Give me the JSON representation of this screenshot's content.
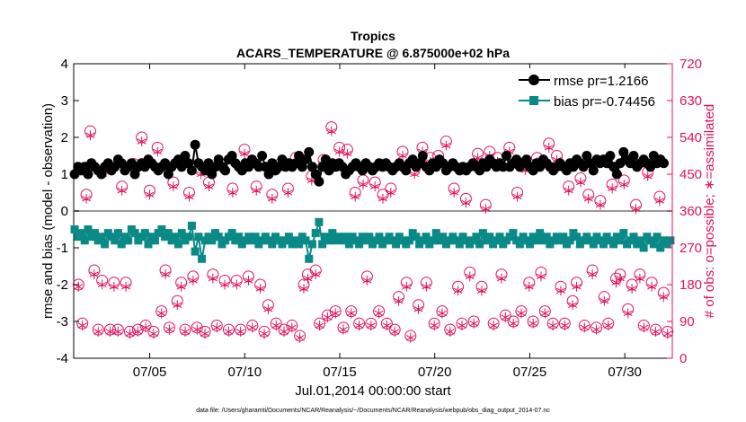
{
  "chart_data": {
    "type": "line",
    "title": "Tropics",
    "subtitle": "ACARS_TEMPERATURE @ 6.875000e+02 hPa",
    "xlabel": "Jul.01,2014 00:00:00 start",
    "ylabel_left": "rmse and bias (model - observation)",
    "ylabel_right": "# of obs: o=possible; ∗=assimilated",
    "footnote": "data file: /Users/gharamti/Documents/NCAR/Reanalysis/~/Documents/NCAR/Reanalysis/webpub/obs_diag_output_2014-07.nc",
    "xlim": [
      1,
      32.5
    ],
    "x_ticks": [
      5,
      10,
      15,
      20,
      25,
      30
    ],
    "x_tick_labels": [
      "07/05",
      "07/10",
      "07/15",
      "07/20",
      "07/25",
      "07/30"
    ],
    "ylim_left": [
      -4,
      4
    ],
    "y_ticks_left": [
      "-4",
      "-3",
      "-2",
      "-1",
      "0",
      "1",
      "2",
      "3",
      "4"
    ],
    "ylim_right": [
      0,
      720
    ],
    "y_ticks_right": [
      "0",
      "90",
      "180",
      "270",
      "360",
      "450",
      "540",
      "630",
      "720"
    ],
    "legend_position": "top-right",
    "colors": {
      "rmse": "#000000",
      "bias": "#0a8a87",
      "obs": "#e0125f",
      "zero": "#9a9a9a"
    },
    "series": [
      {
        "name": "rmse pr=1.2166",
        "axis": "left",
        "marker": "circle",
        "values": [
          1.0,
          1.2,
          1.1,
          1.2,
          1.0,
          1.3,
          1.2,
          1.1,
          1.0,
          1.2,
          1.3,
          1.1,
          1.2,
          1.4,
          1.3,
          1.1,
          1.2,
          1.3,
          1.0,
          1.2,
          1.3,
          1.2,
          1.4,
          1.3,
          1.2,
          1.1,
          1.2,
          1.3,
          1.0,
          1.2,
          1.3,
          1.4,
          1.2,
          1.5,
          1.3,
          1.1,
          1.8,
          1.3,
          1.2,
          1.1,
          1.3,
          1.0,
          1.2,
          1.4,
          1.2,
          1.1,
          1.4,
          1.5,
          1.3,
          1.2,
          1.1,
          1.3,
          1.2,
          1.4,
          1.3,
          1.2,
          1.5,
          1.2,
          1.0,
          1.3,
          1.1,
          1.2,
          1.4,
          1.2,
          1.3,
          1.2,
          1.3,
          1.5,
          1.2,
          1.4,
          1.6,
          1.2,
          1.0,
          0.8,
          1.2,
          1.4,
          1.1,
          1.3,
          1.2,
          1.3,
          1.2,
          1.0,
          1.1,
          1.2,
          1.3,
          1.2,
          1.1,
          1.3,
          1.2,
          1.1,
          1.2,
          1.3,
          1.2,
          1.3,
          1.2,
          1.1,
          1.2,
          1.3,
          1.2,
          1.1,
          1.3,
          1.4,
          1.2,
          1.3,
          1.5,
          1.2,
          1.1,
          1.3,
          1.2,
          1.4,
          1.3,
          1.1,
          1.2,
          1.3,
          1.2,
          1.1,
          1.2,
          1.1,
          1.2,
          1.3,
          1.2,
          1.1,
          1.3,
          1.2,
          1.4,
          1.3,
          1.2,
          1.3,
          1.2,
          1.5,
          1.2,
          1.3,
          1.4,
          1.2,
          1.3,
          1.4,
          1.2,
          1.1,
          1.3,
          1.2,
          1.4,
          1.3,
          1.2,
          1.1,
          1.2,
          1.3,
          1.2,
          1.1,
          1.3,
          1.2,
          1.4,
          1.3,
          1.2,
          1.5,
          1.3,
          1.1,
          1.4,
          1.3,
          1.4,
          1.3,
          1.5,
          1.2,
          1.0,
          1.3,
          1.6,
          1.4,
          1.3,
          1.5,
          1.2,
          1.3,
          1.4,
          1.3,
          1.2,
          1.5,
          1.3,
          1.4,
          1.3
        ]
      },
      {
        "name": "bias pr=-0.74456",
        "axis": "left",
        "marker": "square",
        "values": [
          -0.5,
          -0.7,
          -0.6,
          -0.8,
          -0.5,
          -0.7,
          -0.6,
          -0.8,
          -0.7,
          -0.9,
          -0.6,
          -0.7,
          -0.8,
          -0.6,
          -0.9,
          -0.7,
          -0.8,
          -0.5,
          -0.6,
          -0.8,
          -0.7,
          -0.6,
          -0.9,
          -0.7,
          -0.8,
          -0.6,
          -0.5,
          -0.7,
          -0.6,
          -0.8,
          -0.7,
          -0.9,
          -0.6,
          -0.8,
          -0.7,
          -0.4,
          -1.1,
          -0.7,
          -1.3,
          -0.8,
          -0.7,
          -0.8,
          -0.6,
          -0.7,
          -0.9,
          -0.8,
          -0.7,
          -0.6,
          -0.8,
          -0.7,
          -0.9,
          -0.8,
          -0.7,
          -0.8,
          -0.7,
          -0.9,
          -0.8,
          -0.7,
          -0.8,
          -0.9,
          -0.7,
          -0.8,
          -0.9,
          -0.8,
          -0.7,
          -0.9,
          -0.8,
          -0.9,
          -0.7,
          -0.8,
          -1.3,
          -0.9,
          -0.6,
          -0.3,
          -0.9,
          -0.7,
          -0.8,
          -0.6,
          -0.8,
          -0.7,
          -0.8,
          -0.7,
          -0.9,
          -0.7,
          -0.8,
          -0.9,
          -0.7,
          -0.8,
          -0.7,
          -0.9,
          -0.8,
          -0.7,
          -0.9,
          -0.8,
          -0.7,
          -0.8,
          -0.9,
          -0.7,
          -0.8,
          -0.9,
          -0.8,
          -0.6,
          -0.7,
          -0.9,
          -0.8,
          -0.7,
          -0.9,
          -0.8,
          -0.6,
          -0.8,
          -0.7,
          -0.9,
          -0.8,
          -0.7,
          -0.8,
          -0.9,
          -0.7,
          -0.8,
          -0.9,
          -0.8,
          -0.7,
          -0.9,
          -0.6,
          -0.8,
          -0.7,
          -0.9,
          -0.8,
          -0.7,
          -0.9,
          -0.8,
          -0.7,
          -0.6,
          -0.8,
          -0.9,
          -0.7,
          -0.8,
          -0.9,
          -0.7,
          -0.8,
          -0.6,
          -0.8,
          -0.7,
          -0.9,
          -0.8,
          -0.7,
          -0.8,
          -0.7,
          -0.9,
          -0.8,
          -0.6,
          -0.7,
          -0.9,
          -0.8,
          -0.7,
          -0.8,
          -0.9,
          -0.7,
          -0.8,
          -0.9,
          -0.7,
          -0.8,
          -0.9,
          -0.7,
          -0.8,
          -0.6,
          -0.9,
          -0.8,
          -0.7,
          -0.9,
          -0.8,
          -1.0,
          -0.7,
          -0.8,
          -0.9,
          -0.7,
          -1.0,
          -0.8,
          -0.9,
          -0.8
        ]
      },
      {
        "name": "possible",
        "axis": "right",
        "marker": "open-circle",
        "values": [
          180,
          85,
          400,
          555,
          215,
          70,
          190,
          465,
          70,
          185,
          70,
          420,
          185,
          65,
          475,
          70,
          540,
          80,
          410,
          65,
          515,
          115,
          215,
          75,
          430,
          140,
          185,
          70,
          405,
          200,
          75,
          460,
          65,
          430,
          205,
          80,
          475,
          190,
          70,
          415,
          190,
          70,
          510,
          200,
          80,
          420,
          180,
          65,
          130,
          400,
          85,
          475,
          70,
          415,
          80,
          490,
          55,
          180,
          205,
          445,
          215,
          85,
          485,
          105,
          565,
          115,
          515,
          75,
          510,
          115,
          405,
          85,
          435,
          200,
          85,
          430,
          115,
          400,
          85,
          415,
          70,
          150,
          505,
          185,
          55,
          460,
          130,
          515,
          185,
          490,
          85,
          495,
          115,
          530,
          70,
          415,
          175,
          85,
          390,
          210,
          90,
          500,
          175,
          375,
          505,
          85,
          490,
          205,
          105,
          515,
          90,
          405,
          115,
          470,
          185,
          90,
          490,
          210,
          115,
          525,
          85,
          495,
          175,
          85,
          420,
          140,
          185,
          440,
          80,
          400,
          215,
          75,
          385,
          150,
          85,
          425,
          195,
          205,
          435,
          120,
          180,
          375,
          205,
          80,
          455,
          185,
          70,
          395,
          160,
          65
        ]
      },
      {
        "name": "assimilated",
        "axis": "right",
        "marker": "asterisk",
        "values": [
          175,
          80,
          390,
          545,
          205,
          65,
          180,
          455,
          65,
          175,
          65,
          410,
          175,
          60,
          465,
          65,
          530,
          75,
          400,
          60,
          505,
          110,
          205,
          70,
          420,
          130,
          175,
          65,
          395,
          190,
          70,
          450,
          60,
          420,
          195,
          75,
          465,
          180,
          65,
          405,
          180,
          65,
          500,
          190,
          75,
          410,
          170,
          60,
          120,
          390,
          80,
          465,
          65,
          405,
          75,
          480,
          50,
          170,
          195,
          435,
          205,
          80,
          475,
          100,
          555,
          110,
          505,
          70,
          500,
          110,
          395,
          80,
          425,
          190,
          80,
          420,
          110,
          390,
          80,
          405,
          65,
          140,
          495,
          175,
          50,
          450,
          120,
          505,
          175,
          480,
          80,
          485,
          110,
          520,
          65,
          405,
          165,
          80,
          380,
          200,
          85,
          490,
          165,
          365,
          495,
          80,
          480,
          195,
          100,
          505,
          85,
          395,
          110,
          460,
          175,
          85,
          480,
          200,
          110,
          515,
          80,
          485,
          165,
          80,
          410,
          130,
          175,
          430,
          75,
          390,
          205,
          70,
          375,
          140,
          80,
          415,
          185,
          195,
          425,
          110,
          170,
          365,
          195,
          75,
          445,
          175,
          65,
          385,
          150,
          60
        ]
      }
    ]
  },
  "legend": {
    "rmse": "rmse pr=1.2166",
    "bias": "bias pr=-0.74456"
  }
}
